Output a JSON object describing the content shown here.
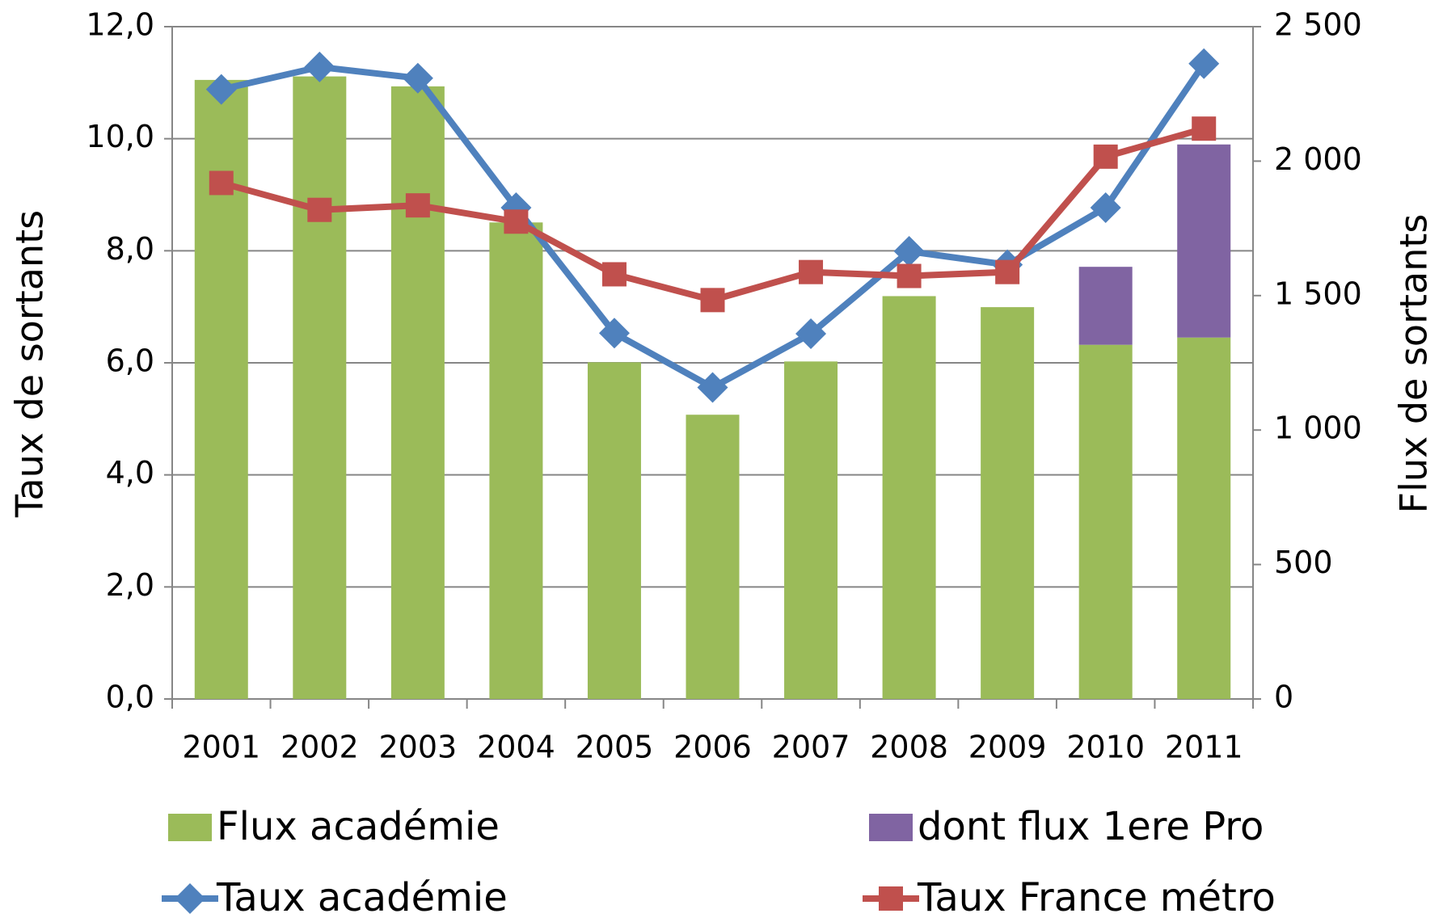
{
  "chart_data": {
    "type": "bar",
    "categories": [
      "2001",
      "2002",
      "2003",
      "2004",
      "2005",
      "2006",
      "2007",
      "2008",
      "2009",
      "2010",
      "2011"
    ],
    "ylabel": "Taux de sortants",
    "y2label": "Flux de sortants",
    "ylim": [
      0,
      12
    ],
    "yticks": [
      {
        "value": 0,
        "label": "0,0"
      },
      {
        "value": 2,
        "label": "2,0"
      },
      {
        "value": 4,
        "label": "4,0"
      },
      {
        "value": 6,
        "label": "6,0"
      },
      {
        "value": 8,
        "label": "8,0"
      },
      {
        "value": 10,
        "label": "10,0"
      },
      {
        "value": 12,
        "label": "12,0"
      }
    ],
    "y2lim": [
      0,
      2500
    ],
    "y2ticks": [
      0,
      500,
      {
        "value": 1000,
        "label": "1 000"
      },
      {
        "value": 1500,
        "label": "1 500"
      },
      {
        "value": 2000,
        "label": "2 000"
      },
      {
        "value": 2500,
        "label": "2 500"
      }
    ],
    "grid": true,
    "series": [
      {
        "name": "Flux académie",
        "type": "bar",
        "axis": "y2",
        "color": "#9bbb59",
        "values": [
          2302,
          2315,
          2278,
          1772,
          1252,
          1057,
          1255,
          1498,
          1457,
          1317,
          1344
        ]
      },
      {
        "name": "dont flux 1ere Pro",
        "type": "bar",
        "axis": "y2",
        "color": "#8064a2",
        "values": [
          null,
          null,
          null,
          null,
          null,
          null,
          null,
          null,
          null,
          290,
          718
        ]
      },
      {
        "name": "Taux académie",
        "type": "line",
        "marker": "diamond",
        "color": "#4f81bd",
        "values": [
          10.88,
          11.28,
          11.08,
          8.77,
          6.53,
          5.56,
          6.52,
          7.99,
          7.75,
          8.77,
          11.34
        ]
      },
      {
        "name": "Taux France métro",
        "type": "line",
        "marker": "square",
        "color": "#c0504d",
        "values": [
          9.21,
          8.73,
          8.81,
          8.52,
          7.58,
          7.12,
          7.62,
          7.55,
          7.62,
          9.68,
          10.18
        ]
      }
    ]
  }
}
